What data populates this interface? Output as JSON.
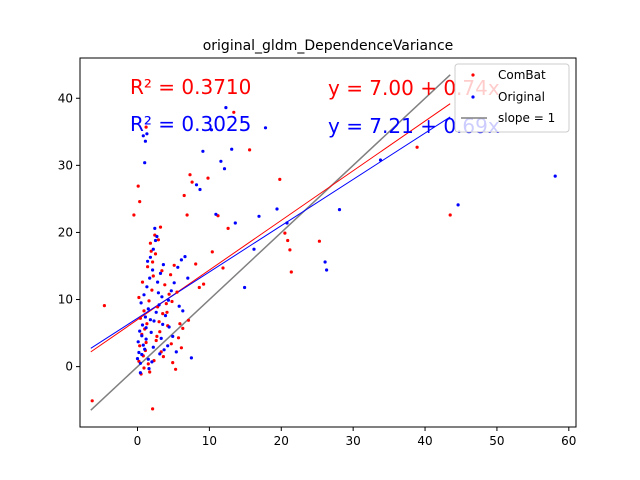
{
  "chart_data": {
    "type": "scatter",
    "title": "original_gldm_DependenceVariance",
    "xlabel": "",
    "ylabel": "",
    "xlim": [
      -8,
      61
    ],
    "ylim": [
      -9,
      46
    ],
    "xticks": [
      "0",
      "10",
      "20",
      "30",
      "40",
      "50",
      "60"
    ],
    "yticks": [
      "0",
      "10",
      "20",
      "30",
      "40"
    ],
    "annotations": {
      "r2_combat": "R² = 0.3710",
      "r2_original": "R² = 0.3025",
      "eq_combat": "y = 7.00 + 0.74x",
      "eq_original": "y = 7.21 + 0.69x"
    },
    "legend": {
      "position": "upper-right",
      "entries": [
        "ComBat",
        "Original",
        "slope = 1"
      ]
    },
    "colors": {
      "combat": "#ff0000",
      "original": "#0000ff",
      "identity": "#808080"
    },
    "lines": [
      {
        "name": "ComBat fit",
        "intercept": 7.0,
        "slope": 0.74,
        "x": [
          -6.5,
          43.5
        ],
        "color": "#ff0000"
      },
      {
        "name": "Original fit",
        "intercept": 7.21,
        "slope": 0.69,
        "x": [
          -6.5,
          43.5
        ],
        "color": "#0000ff"
      },
      {
        "name": "slope = 1",
        "intercept": 0,
        "slope": 1,
        "x": [
          -6.5,
          43.5
        ],
        "color": "#808080"
      }
    ],
    "series": [
      {
        "name": "ComBat",
        "color": "#ff0000",
        "points": [
          [
            -6.3,
            -5.1
          ],
          [
            -4.6,
            9.1
          ],
          [
            -0.5,
            22.6
          ],
          [
            0.1,
            26.9
          ],
          [
            0.3,
            24.6
          ],
          [
            1.2,
            35.7
          ],
          [
            2.1,
            -6.3
          ],
          [
            0.2,
            0.8
          ],
          [
            0.5,
            -1.1
          ],
          [
            0.8,
            1.6
          ],
          [
            1.1,
            2.4
          ],
          [
            1.5,
            0.4
          ],
          [
            0.3,
            3.1
          ],
          [
            0.6,
            4.8
          ],
          [
            1.0,
            5.6
          ],
          [
            0.4,
            7.2
          ],
          [
            0.9,
            8.3
          ],
          [
            1.3,
            6.4
          ],
          [
            1.6,
            9.8
          ],
          [
            2.0,
            11.4
          ],
          [
            0.2,
            10.3
          ],
          [
            0.7,
            12.6
          ],
          [
            1.4,
            14.9
          ],
          [
            2.2,
            13.5
          ],
          [
            2.5,
            16.8
          ],
          [
            1.8,
            18.4
          ],
          [
            2.4,
            19.6
          ],
          [
            2.9,
            18.9
          ],
          [
            3.2,
            20.8
          ],
          [
            1.9,
            17.2
          ],
          [
            2.6,
            3.9
          ],
          [
            3.1,
            5.2
          ],
          [
            3.5,
            7.9
          ],
          [
            4.0,
            9.4
          ],
          [
            4.4,
            10.8
          ],
          [
            3.8,
            12.2
          ],
          [
            4.6,
            13.7
          ],
          [
            5.1,
            15.1
          ],
          [
            2.8,
            8.9
          ],
          [
            3.3,
            2.2
          ],
          [
            4.2,
            6.1
          ],
          [
            4.9,
            0.6
          ],
          [
            5.3,
            -0.4
          ],
          [
            5.7,
            4.3
          ],
          [
            6.1,
            2.8
          ],
          [
            6.5,
            25.5
          ],
          [
            6.9,
            22.6
          ],
          [
            7.3,
            28.6
          ],
          [
            7.6,
            27.5
          ],
          [
            8.1,
            15.3
          ],
          [
            8.6,
            11.8
          ],
          [
            9.2,
            12.3
          ],
          [
            9.8,
            28.1
          ],
          [
            10.4,
            17.1
          ],
          [
            11.2,
            22.5
          ],
          [
            11.9,
            14.7
          ],
          [
            12.6,
            20.6
          ],
          [
            13.4,
            37.9
          ],
          [
            15.6,
            32.3
          ],
          [
            19.8,
            27.9
          ],
          [
            20.5,
            19.9
          ],
          [
            20.9,
            18.8
          ],
          [
            21.2,
            17.4
          ],
          [
            21.4,
            14.1
          ],
          [
            25.3,
            18.7
          ],
          [
            38.9,
            32.7
          ],
          [
            43.5,
            22.6
          ],
          [
            5.9,
            6.4
          ],
          [
            6.3,
            5.7
          ],
          [
            7.1,
            6.9
          ],
          [
            4.7,
            3.4
          ],
          [
            3.6,
            1.5
          ],
          [
            2.3,
            0.9
          ],
          [
            1.7,
            -0.8
          ],
          [
            0.9,
            -0.2
          ],
          [
            1.2,
            3.6
          ],
          [
            2.7,
            4.5
          ],
          [
            3.0,
            6.7
          ],
          [
            4.1,
            8.1
          ],
          [
            4.8,
            9.7
          ],
          [
            5.5,
            11.1
          ],
          [
            3.4,
            14.3
          ],
          [
            2.1,
            15.6
          ]
        ]
      },
      {
        "name": "Original",
        "color": "#0000ff",
        "points": [
          [
            0.0,
            1.2
          ],
          [
            0.2,
            2.1
          ],
          [
            0.4,
            0.5
          ],
          [
            0.6,
            1.8
          ],
          [
            0.8,
            3.2
          ],
          [
            1.0,
            2.6
          ],
          [
            1.2,
            4.1
          ],
          [
            0.3,
            5.3
          ],
          [
            0.7,
            6.2
          ],
          [
            1.1,
            7.4
          ],
          [
            1.5,
            8.6
          ],
          [
            0.5,
            9.5
          ],
          [
            0.9,
            10.7
          ],
          [
            1.3,
            11.9
          ],
          [
            1.7,
            13.2
          ],
          [
            2.1,
            14.4
          ],
          [
            1.4,
            15.7
          ],
          [
            1.8,
            16.3
          ],
          [
            2.2,
            17.5
          ],
          [
            2.5,
            18.8
          ],
          [
            1.0,
            30.4
          ],
          [
            1.1,
            33.6
          ],
          [
            1.3,
            34.7
          ],
          [
            0.8,
            34.4
          ],
          [
            1.9,
            5.1
          ],
          [
            2.3,
            6.8
          ],
          [
            2.6,
            8.1
          ],
          [
            3.0,
            9.2
          ],
          [
            3.4,
            10.4
          ],
          [
            2.8,
            12.6
          ],
          [
            3.2,
            13.9
          ],
          [
            3.6,
            15.2
          ],
          [
            2.4,
            20.6
          ],
          [
            2.7,
            19.4
          ],
          [
            3.5,
            6.3
          ],
          [
            3.9,
            7.6
          ],
          [
            4.3,
            9.9
          ],
          [
            4.7,
            11.3
          ],
          [
            5.1,
            12.5
          ],
          [
            5.6,
            14.8
          ],
          [
            6.1,
            15.9
          ],
          [
            6.6,
            16.4
          ],
          [
            7.0,
            13.2
          ],
          [
            7.5,
            1.3
          ],
          [
            8.2,
            27.1
          ],
          [
            8.7,
            26.4
          ],
          [
            9.1,
            32.1
          ],
          [
            10.3,
            35.3
          ],
          [
            10.9,
            22.7
          ],
          [
            11.6,
            30.6
          ],
          [
            12.1,
            29.5
          ],
          [
            12.3,
            38.6
          ],
          [
            13.1,
            32.4
          ],
          [
            13.6,
            21.4
          ],
          [
            14.9,
            11.8
          ],
          [
            16.2,
            17.5
          ],
          [
            16.9,
            22.4
          ],
          [
            17.8,
            35.6
          ],
          [
            19.4,
            23.5
          ],
          [
            20.8,
            21.4
          ],
          [
            26.1,
            15.6
          ],
          [
            26.3,
            14.4
          ],
          [
            28.1,
            23.4
          ],
          [
            33.8,
            30.8
          ],
          [
            44.6,
            24.1
          ],
          [
            58.1,
            28.4
          ],
          [
            4.2,
            3.1
          ],
          [
            4.9,
            4.5
          ],
          [
            5.4,
            2.2
          ],
          [
            3.1,
            1.9
          ],
          [
            2.0,
            0.7
          ],
          [
            1.6,
            -0.3
          ],
          [
            0.4,
            -0.9
          ],
          [
            0.1,
            3.7
          ],
          [
            0.6,
            4.6
          ],
          [
            1.2,
            5.8
          ],
          [
            1.8,
            7.0
          ],
          [
            2.9,
            11.0
          ],
          [
            3.3,
            4.2
          ],
          [
            5.8,
            9.0
          ],
          [
            6.3,
            8.3
          ],
          [
            4.4,
            5.9
          ],
          [
            2.2,
            2.9
          ],
          [
            3.7,
            2.5
          ],
          [
            1.5,
            1.1
          ]
        ]
      }
    ]
  }
}
